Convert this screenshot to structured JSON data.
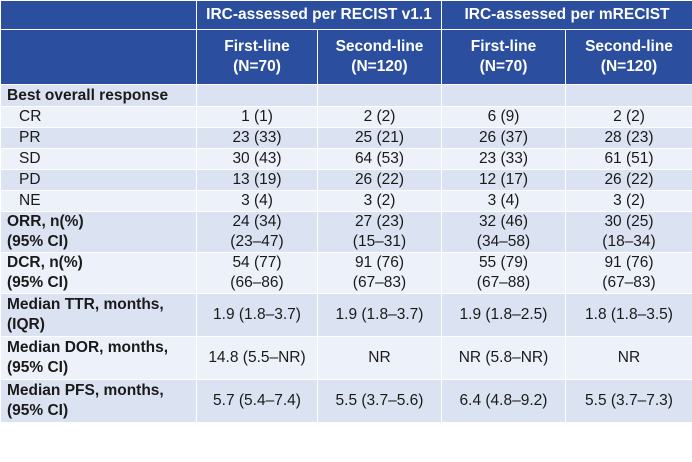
{
  "header": {
    "group_recist": "IRC-assessed per RECIST v1.1",
    "group_mrecist": "IRC-assessed per mRECIST",
    "col1_line1": "First-line",
    "col1_line2": "(N=70)",
    "col2_line1": "Second-line",
    "col2_line2": "(N=120)",
    "col3_line1": "First-line",
    "col3_line2": "(N=70)",
    "col4_line1": "Second-line",
    "col4_line2": "(N=120)"
  },
  "rows": {
    "bor": {
      "label": "Best overall response"
    },
    "cr": {
      "label": "CR",
      "v": [
        "1 (1)",
        "2 (2)",
        "6 (9)",
        "2 (2)"
      ]
    },
    "pr": {
      "label": "PR",
      "v": [
        "23 (33)",
        "25 (21)",
        "26 (37)",
        "28 (23)"
      ]
    },
    "sd": {
      "label": "SD",
      "v": [
        "30 (43)",
        "64 (53)",
        "23 (33)",
        "61 (51)"
      ]
    },
    "pd": {
      "label": "PD",
      "v": [
        "13 (19)",
        "26 (22)",
        "12 (17)",
        "26 (22)"
      ]
    },
    "ne": {
      "label": "NE",
      "v": [
        "3 (4)",
        "3 (2)",
        "3 (4)",
        "3 (2)"
      ]
    },
    "orr": {
      "label1": "ORR, n(%)",
      "label2": "(95% CI)",
      "v": [
        "24 (34)",
        "27 (23)",
        "32 (46)",
        "30 (25)"
      ],
      "ci": [
        "(23–47)",
        "(15–31)",
        "(34–58)",
        "(18–34)"
      ]
    },
    "dcr": {
      "label1": "DCR, n(%)",
      "label2": "(95% CI)",
      "v": [
        "54 (77)",
        "91 (76)",
        "55 (79)",
        "91 (76)"
      ],
      "ci": [
        "(66–86)",
        "(67–83)",
        "(67–88)",
        "(67–83)"
      ]
    },
    "ttr": {
      "label1": "Median TTR, months,",
      "label2": "(IQR)",
      "v": [
        "1.9 (1.8–3.7)",
        "1.9 (1.8–3.7)",
        "1.9 (1.8–2.5)",
        "1.8 (1.8–3.5)"
      ]
    },
    "dor": {
      "label1": "Median DOR, months,",
      "label2": "(95% CI)",
      "v": [
        "14.8 (5.5–NR)",
        "NR",
        "NR (5.8–NR)",
        "NR"
      ]
    },
    "pfs": {
      "label1": "Median PFS, months,",
      "label2": "(95% CI)",
      "v": [
        "5.7 (5.4–7.4)",
        "5.5 (3.7–5.6)",
        "6.4 (4.8–9.2)",
        "5.5 (3.7–7.3)"
      ]
    }
  }
}
